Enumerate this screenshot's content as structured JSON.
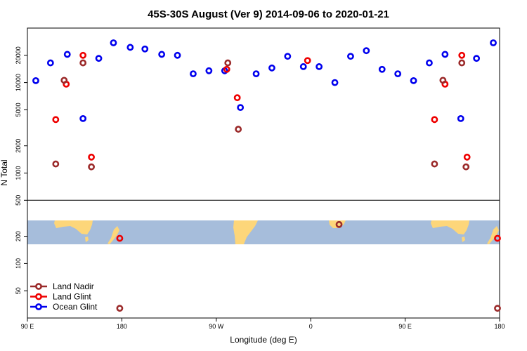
{
  "chart_data": {
    "type": "scatter",
    "title": "45S-30S August (Ver 9)   2014-09-06 to 2020-01-21",
    "xlabel": "Longitude (deg E)",
    "ylabel": "N Total",
    "xlim": [
      90,
      540
    ],
    "ylim_log": [
      25,
      40000
    ],
    "y_scale": "log",
    "x_ticks": [
      {
        "value": 90,
        "label": "90 E"
      },
      {
        "value": 180,
        "label": "180"
      },
      {
        "value": 270,
        "label": "90 W"
      },
      {
        "value": 360,
        "label": "0"
      },
      {
        "value": 450,
        "label": "90 E"
      },
      {
        "value": 540,
        "label": "180"
      }
    ],
    "y_ticks": [
      {
        "value": 50,
        "label": "50"
      },
      {
        "value": 100,
        "label": "100"
      },
      {
        "value": 200,
        "label": "200"
      },
      {
        "value": 500,
        "label": "500"
      },
      {
        "value": 1000,
        "label": "1000"
      },
      {
        "value": 2000,
        "label": "2000"
      },
      {
        "value": 5000,
        "label": "5000"
      },
      {
        "value": 10000,
        "label": "10000"
      },
      {
        "value": 20000,
        "label": "20000"
      }
    ],
    "divider_y": 500,
    "map_band_lat": "45S-30S",
    "series": [
      {
        "name": "Ocean Glint",
        "color": "#0000ee",
        "points": [
          [
            98,
            10500
          ],
          [
            112,
            16500
          ],
          [
            128,
            20500
          ],
          [
            143,
            4000
          ],
          [
            158,
            18500
          ],
          [
            172,
            27500
          ],
          [
            188,
            24500
          ],
          [
            202,
            23500
          ],
          [
            218,
            20500
          ],
          [
            233,
            20000
          ],
          [
            248,
            12500
          ],
          [
            263,
            13500
          ],
          [
            278,
            13500
          ],
          [
            293,
            5300
          ],
          [
            308,
            12500
          ],
          [
            323,
            14500
          ],
          [
            338,
            19500
          ],
          [
            353,
            15000
          ],
          [
            368,
            15000
          ],
          [
            383,
            10000
          ],
          [
            398,
            19500
          ],
          [
            413,
            22500
          ],
          [
            428,
            14000
          ],
          [
            443,
            12500
          ],
          [
            458,
            10500
          ],
          [
            473,
            16500
          ],
          [
            488,
            20500
          ],
          [
            503,
            4000
          ],
          [
            518,
            18500
          ],
          [
            534,
            27500
          ]
        ]
      },
      {
        "name": "Land Glint",
        "color": "#ee0000",
        "points": [
          [
            117,
            3900
          ],
          [
            127,
            9600
          ],
          [
            143,
            20000
          ],
          [
            151,
            1500
          ],
          [
            280,
            14000
          ],
          [
            290,
            6800
          ],
          [
            357,
            17500
          ],
          [
            478,
            3900
          ],
          [
            488,
            9600
          ],
          [
            504,
            20000
          ],
          [
            509,
            1500
          ],
          [
            178,
            190
          ],
          [
            538,
            190
          ]
        ]
      },
      {
        "name": "Land Nadir",
        "color": "#9b2a2a",
        "points": [
          [
            117,
            1260
          ],
          [
            125,
            10600
          ],
          [
            143,
            16500
          ],
          [
            151,
            1170
          ],
          [
            281,
            16500
          ],
          [
            291,
            3050
          ],
          [
            387,
            270
          ],
          [
            478,
            1260
          ],
          [
            486,
            10600
          ],
          [
            504,
            16500
          ],
          [
            508,
            1170
          ],
          [
            178,
            32
          ],
          [
            538,
            32
          ]
        ]
      }
    ],
    "legend": {
      "placement": "bottom-left",
      "entries": [
        "Land Nadir",
        "Land Glint",
        "Ocean Glint"
      ]
    },
    "colors": {
      "ocean": "#a6bddb",
      "land": "#fdd67a"
    }
  }
}
